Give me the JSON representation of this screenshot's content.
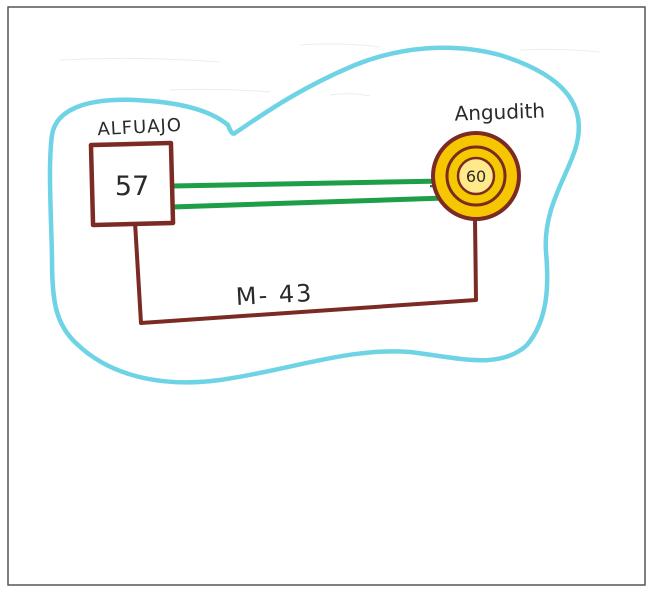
{
  "nodes": {
    "left": {
      "name": "ALFUAJO",
      "value": "57",
      "shape": "square"
    },
    "right": {
      "name": "Angudith",
      "value": "60",
      "shape": "circle"
    }
  },
  "edges": {
    "bottom_label": "M- 43"
  },
  "colors": {
    "boundary": "#6fd3e6",
    "outline": "#7b2a24",
    "double_line": "#1e9e46",
    "circle_fill": "#f6c700",
    "paper_border": "#555555"
  }
}
